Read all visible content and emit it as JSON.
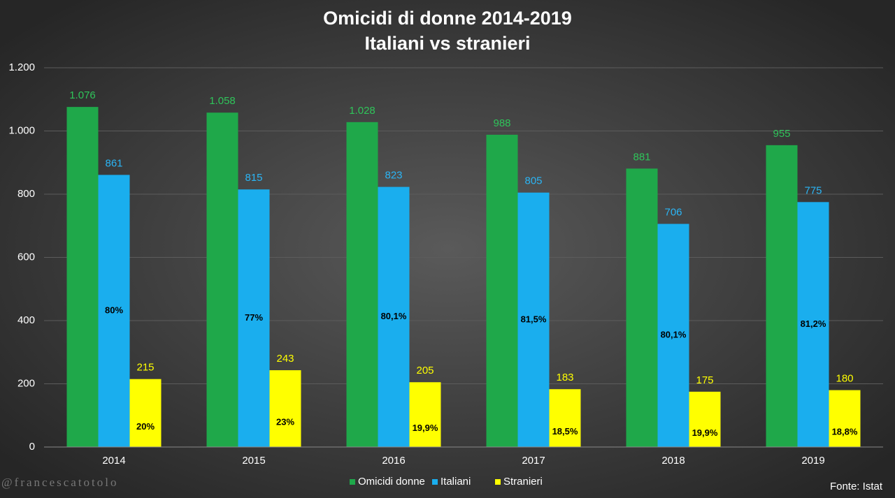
{
  "chart_data": {
    "type": "bar",
    "title": "Omicidi di donne 2014-2019",
    "subtitle": "Italiani vs stranieri",
    "categories": [
      "2014",
      "2015",
      "2016",
      "2017",
      "2018",
      "2019"
    ],
    "series": [
      {
        "name": "Omicidi donne",
        "color": "#1fa84a",
        "label_color": "#2fc45a",
        "values": [
          1076,
          1058,
          1028,
          988,
          881,
          955
        ],
        "value_labels": [
          "1.076",
          "1.058",
          "1.028",
          "988",
          "881",
          "955"
        ]
      },
      {
        "name": "Italiani",
        "color": "#1aaeee",
        "label_color": "#2bb5f5",
        "values": [
          861,
          815,
          823,
          805,
          706,
          775
        ],
        "percent_labels": [
          "80%",
          "77%",
          "80,1%",
          "81,5%",
          "80,1%",
          "81,2%"
        ]
      },
      {
        "name": "Stranieri",
        "color": "#ffff00",
        "label_color": "#ffff00",
        "values": [
          215,
          243,
          205,
          183,
          175,
          180
        ],
        "percent_labels": [
          "20%",
          "23%",
          "19,9%",
          "18,5%",
          "19,9%",
          "18,8%"
        ]
      }
    ],
    "ylim": [
      0,
      1200
    ],
    "yticks": [
      0,
      200,
      400,
      600,
      800,
      {
        "value": 1000,
        "label": "1.000"
      },
      {
        "value": 1200,
        "label": "1.200"
      }
    ],
    "grid": true,
    "legend": "bottom",
    "watermark": "@francescatotolo",
    "source": "Fonte: Istat"
  }
}
